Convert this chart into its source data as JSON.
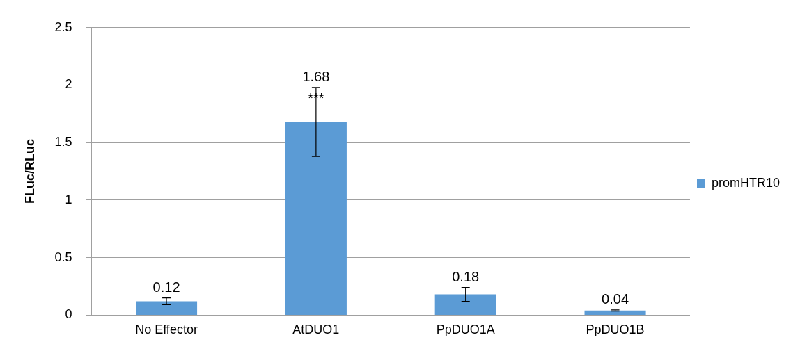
{
  "chart_data": {
    "type": "bar",
    "ylabel": "FLuc/RLuc",
    "categories": [
      "No Effector",
      "AtDUO1",
      "PpDUO1A",
      "PpDUO1B"
    ],
    "series": [
      {
        "name": "promHTR10",
        "color": "#5b9bd5",
        "values": [
          0.12,
          1.68,
          0.18,
          0.04
        ],
        "errors": [
          0.03,
          0.3,
          0.06,
          0.005
        ]
      }
    ],
    "ylim": [
      0,
      2.5
    ],
    "yticks": [
      0,
      0.5,
      1,
      1.5,
      2,
      2.5
    ],
    "grid": "y",
    "legend": "right",
    "data_labels": true,
    "annotations": [
      {
        "text": "***",
        "x": "AtDUO1",
        "y": 1.88
      }
    ]
  }
}
